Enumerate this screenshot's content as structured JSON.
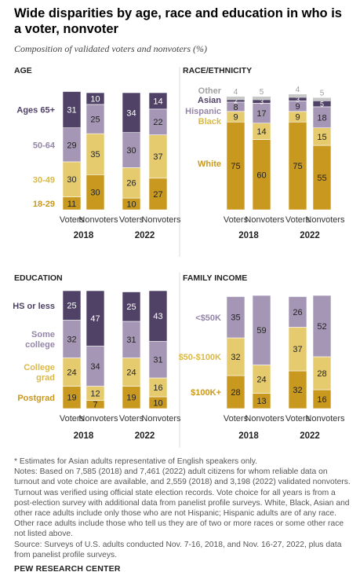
{
  "title": "Wide disparities by age, race and education in who is a voter, nonvoter",
  "subtitle": "Composition of validated voters and nonvoters (%)",
  "colors": {
    "dark": "#4f4266",
    "lavender": "#a596b5",
    "light_yellow": "#e5cb6e",
    "gold": "#c9981e",
    "gray": "#c8c8c8",
    "mid_purple": "#7c6a98"
  },
  "chart_data": [
    {
      "type": "bar",
      "title": "AGE",
      "stacked": true,
      "groups": [
        "2018",
        "2022"
      ],
      "columns": [
        "Voters",
        "Nonvoters"
      ],
      "series": [
        {
          "name": "Ages 65+",
          "label_color": "#4f4266",
          "color": "#4f4266",
          "text_color": "#ffffff",
          "values": {
            "2018": [
              31,
              10
            ],
            "2022": [
              34,
              14
            ]
          }
        },
        {
          "name": "50-64",
          "label_color": "#9486a8",
          "color": "#a596b5",
          "text_color": "#222222",
          "values": {
            "2018": [
              29,
              25
            ],
            "2022": [
              30,
              22
            ]
          }
        },
        {
          "name": "30-49",
          "label_color": "#d9b94a",
          "color": "#e5cb6e",
          "text_color": "#222222",
          "values": {
            "2018": [
              30,
              35
            ],
            "2022": [
              26,
              37
            ]
          }
        },
        {
          "name": "18-29",
          "label_color": "#c9981e",
          "color": "#c9981e",
          "text_color": "#222222",
          "values": {
            "2018": [
              11,
              30
            ],
            "2022": [
              10,
              27
            ]
          }
        }
      ]
    },
    {
      "type": "bar",
      "title": "RACE/ETHNICITY",
      "stacked": true,
      "groups": [
        "2018",
        "2022"
      ],
      "columns": [
        "Voters",
        "Nonvoters"
      ],
      "series": [
        {
          "name": "Other",
          "label_color": "#a0a0a0",
          "color": "#c8c8c8",
          "text_color": "#a0a0a0",
          "values": {
            "2018": [
              4,
              5
            ],
            "2022": [
              4,
              5
            ]
          },
          "labels_outside": true
        },
        {
          "name": "Asian",
          "label_color": "#4f4266",
          "color": "#4f4266",
          "text_color": "#ffffff",
          "values": {
            "2018": [
              2,
              3
            ],
            "2022": [
              3,
              5
            ]
          }
        },
        {
          "name": "Hispanic",
          "label_color": "#9486a8",
          "color": "#a596b5",
          "text_color": "#222222",
          "values": {
            "2018": [
              8,
              17
            ],
            "2022": [
              9,
              18
            ]
          }
        },
        {
          "name": "Black",
          "label_color": "#d9b94a",
          "color": "#e5cb6e",
          "text_color": "#222222",
          "values": {
            "2018": [
              9,
              14
            ],
            "2022": [
              9,
              15
            ]
          }
        },
        {
          "name": "White",
          "label_color": "#c9981e",
          "color": "#c9981e",
          "text_color": "#222222",
          "values": {
            "2018": [
              75,
              60
            ],
            "2022": [
              75,
              55
            ]
          }
        }
      ]
    },
    {
      "type": "bar",
      "title": "EDUCATION",
      "stacked": true,
      "groups": [
        "2018",
        "2022"
      ],
      "columns": [
        "Voters",
        "Nonvoters"
      ],
      "series": [
        {
          "name": "HS or less",
          "label_color": "#4f4266",
          "color": "#4f4266",
          "text_color": "#ffffff",
          "values": {
            "2018": [
              25,
              47
            ],
            "2022": [
              25,
              43
            ]
          }
        },
        {
          "name": "Some college",
          "label_color": "#9486a8",
          "color": "#a596b5",
          "text_color": "#222222",
          "values": {
            "2018": [
              32,
              34
            ],
            "2022": [
              31,
              31
            ]
          }
        },
        {
          "name": "College grad",
          "label_color": "#d9b94a",
          "color": "#e5cb6e",
          "text_color": "#222222",
          "values": {
            "2018": [
              24,
              12
            ],
            "2022": [
              24,
              16
            ]
          }
        },
        {
          "name": "Postgrad",
          "label_color": "#c9981e",
          "color": "#c9981e",
          "text_color": "#222222",
          "values": {
            "2018": [
              19,
              7
            ],
            "2022": [
              19,
              10
            ]
          }
        }
      ]
    },
    {
      "type": "bar",
      "title": "FAMILY INCOME",
      "stacked": true,
      "groups": [
        "2018",
        "2022"
      ],
      "columns": [
        "Voters",
        "Nonvoters"
      ],
      "series": [
        {
          "name": "<$50K",
          "label_color": "#9486a8",
          "color": "#a596b5",
          "text_color": "#222222",
          "values": {
            "2018": [
              35,
              59
            ],
            "2022": [
              26,
              52
            ]
          }
        },
        {
          "name": "$50-$100K",
          "label_color": "#d9b94a",
          "color": "#e5cb6e",
          "text_color": "#222222",
          "values": {
            "2018": [
              32,
              24
            ],
            "2022": [
              37,
              28
            ]
          }
        },
        {
          "name": "$100K+",
          "label_color": "#c9981e",
          "color": "#c9981e",
          "text_color": "#222222",
          "values": {
            "2018": [
              28,
              13
            ],
            "2022": [
              32,
              16
            ]
          }
        }
      ]
    }
  ],
  "notes": [
    "* Estimates for Asian adults representative of English speakers only.",
    "Notes: Based on 7,585 (2018) and 7,461 (2022) adult citizens for whom reliable data on turnout and vote choice are available, and 2,559 (2018) and 3,198 (2022) validated nonvoters. Turnout was verified using official state election records. Vote choice for all years is from a post-election survey with additional data from panelist profile surveys. White, Black, Asian and other race adults include only those who are not Hispanic; Hispanic adults are of any race. Other race adults include those who tell us they are of two or more races or some other race not listed above.",
    "Source: Surveys of U.S. adults conducted Nov. 7-16, 2018, and Nov. 16-27, 2022, plus data from panelist profile surveys."
  ],
  "source_label": "PEW RESEARCH CENTER"
}
